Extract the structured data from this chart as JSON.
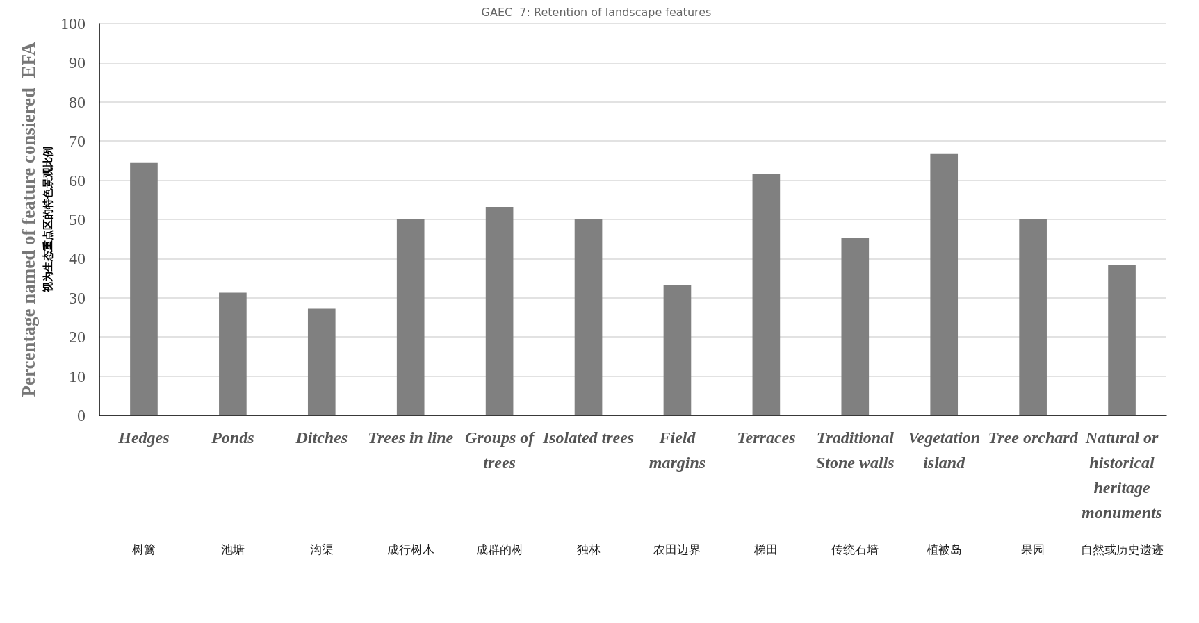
{
  "chart_data": {
    "type": "bar",
    "title": "GAEC  7: Retention of landscape features",
    "ylabel": "Percentage named of feature consiered  EFA\n视为生态重点区的特色景观比例",
    "categories": [
      "Hedges\n树篱",
      "Ponds\n池塘",
      "Ditches\n沟渠",
      "Trees in line\n成行树木",
      "Groups of\ntrees\n成群的树",
      "Isolated trees\n独林",
      "Field\nmargins\n农田边界",
      "Terraces\n梯田",
      "Traditional\nStone walls\n传统石墙",
      "Vegetation\nisland\n植被岛",
      "Tree orchard\n果园",
      "Natural or\nhistorical\nheritage\nmonuments\n自然或历史遗迹"
    ],
    "values": [
      64.6,
      31.3,
      27.2,
      50,
      53.2,
      50,
      33.3,
      61.6,
      45.4,
      66.7,
      50,
      38.4
    ],
    "color": "#808080",
    "ylim": [
      0,
      100
    ],
    "yticks": [
      0,
      10,
      20,
      30,
      40,
      50,
      60,
      70,
      80,
      90,
      100
    ],
    "grid": "y"
  }
}
